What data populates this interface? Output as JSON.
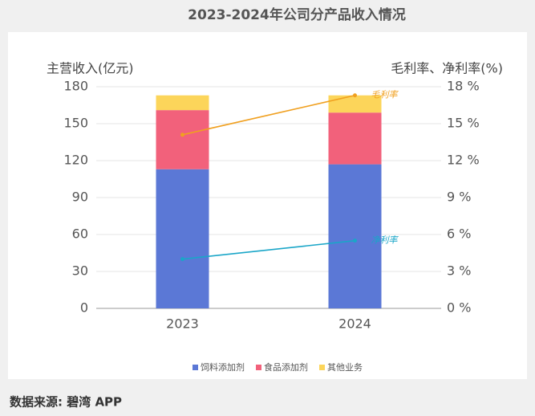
{
  "chart_data": {
    "type": "bar",
    "stacked": true,
    "title": "2023-2024年公司分产品收入情况",
    "y_label": "主营收入(亿元)",
    "y2_label": "毛利率、净利率(%)",
    "categories": [
      "2023",
      "2024"
    ],
    "series": [
      {
        "name": "饲料添加剂",
        "color": "#5b78d6",
        "values": [
          113,
          117
        ]
      },
      {
        "name": "食品添加剂",
        "color": "#f2617b",
        "values": [
          48,
          42
        ]
      },
      {
        "name": "其他业务",
        "color": "#fcd55a",
        "values": [
          12,
          14
        ]
      },
      {
        "name": "毛利率",
        "color": "#f0a020",
        "values": [
          14.1,
          17.3
        ],
        "axis": "y2"
      },
      {
        "name": "净利率",
        "color": "#1aa6c8",
        "values": [
          4.0,
          5.5
        ],
        "axis": "y2"
      }
    ],
    "ylim": [
      0,
      180
    ],
    "yticks": [
      0,
      30,
      60,
      90,
      120,
      150,
      180
    ],
    "y2lim": [
      0,
      18
    ],
    "y2ticks": [
      {
        "value": 0,
        "label": "0 %"
      },
      {
        "value": 3,
        "label": "3 %"
      },
      {
        "value": 6,
        "label": "6 %"
      },
      {
        "value": 9,
        "label": "9 %"
      },
      {
        "value": 12,
        "label": "12 %"
      },
      {
        "value": 15,
        "label": "15 %"
      },
      {
        "value": 18,
        "label": "18 %"
      }
    ],
    "grid": true,
    "legend": "bottom",
    "source": "数据来源: 碧湾 APP"
  }
}
